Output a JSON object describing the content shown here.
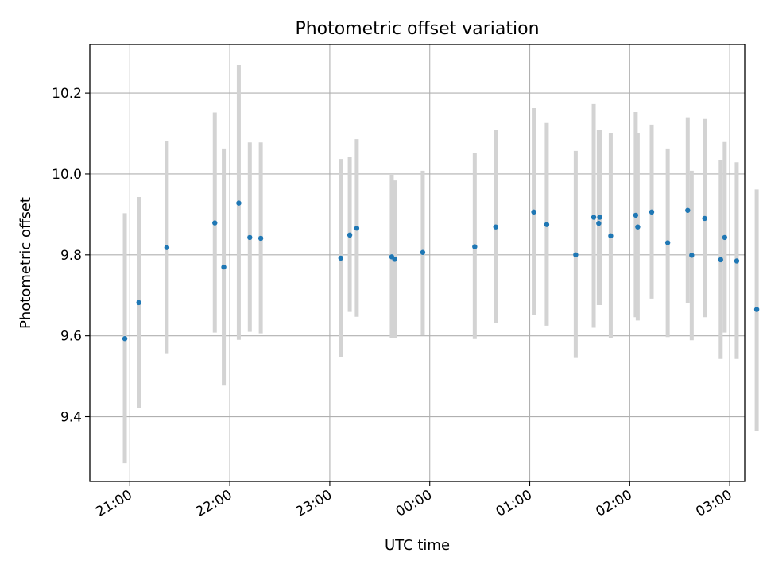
{
  "chart_data": {
    "type": "scatter",
    "title": "Photometric offset variation",
    "xlabel": "UTC time",
    "ylabel": "Photometric offset",
    "x_unit": "UTC hours, with values past midnight written as 24 + hour",
    "xlim": [
      20.6,
      27.15
    ],
    "ylim": [
      9.24,
      10.32
    ],
    "grid": true,
    "marker_color": "#1f77b4",
    "errorbar_color": "#d3d3d3",
    "xticks": [
      {
        "value": 21,
        "label": "21:00"
      },
      {
        "value": 22,
        "label": "22:00"
      },
      {
        "value": 23,
        "label": "23:00"
      },
      {
        "value": 24,
        "label": "00:00"
      },
      {
        "value": 25,
        "label": "01:00"
      },
      {
        "value": 26,
        "label": "02:00"
      },
      {
        "value": 27,
        "label": "03:00"
      }
    ],
    "yticks": [
      {
        "value": 9.4,
        "label": "9.4"
      },
      {
        "value": 9.6,
        "label": "9.6"
      },
      {
        "value": 9.8,
        "label": "9.8"
      },
      {
        "value": 10.0,
        "label": "10.0"
      },
      {
        "value": 10.2,
        "label": "10.2"
      }
    ],
    "points": [
      {
        "x": 20.95,
        "y": 9.593,
        "err_low": 9.285,
        "err_high": 9.903
      },
      {
        "x": 21.09,
        "y": 9.682,
        "err_low": 9.422,
        "err_high": 9.943
      },
      {
        "x": 21.37,
        "y": 9.818,
        "err_low": 9.557,
        "err_high": 10.081
      },
      {
        "x": 21.85,
        "y": 9.879,
        "err_low": 9.608,
        "err_high": 10.152
      },
      {
        "x": 21.94,
        "y": 9.77,
        "err_low": 9.477,
        "err_high": 10.063
      },
      {
        "x": 22.09,
        "y": 9.928,
        "err_low": 9.59,
        "err_high": 10.269
      },
      {
        "x": 22.2,
        "y": 9.843,
        "err_low": 9.61,
        "err_high": 10.078
      },
      {
        "x": 22.31,
        "y": 9.841,
        "err_low": 9.606,
        "err_high": 10.078
      },
      {
        "x": 23.11,
        "y": 9.792,
        "err_low": 9.548,
        "err_high": 10.037
      },
      {
        "x": 23.2,
        "y": 9.849,
        "err_low": 9.659,
        "err_high": 10.043
      },
      {
        "x": 23.27,
        "y": 9.866,
        "err_low": 9.647,
        "err_high": 10.086
      },
      {
        "x": 23.62,
        "y": 9.795,
        "err_low": 9.594,
        "err_high": 9.998
      },
      {
        "x": 23.65,
        "y": 9.789,
        "err_low": 9.594,
        "err_high": 9.984
      },
      {
        "x": 23.93,
        "y": 9.806,
        "err_low": 9.601,
        "err_high": 10.008
      },
      {
        "x": 24.45,
        "y": 9.82,
        "err_low": 9.592,
        "err_high": 10.051
      },
      {
        "x": 24.66,
        "y": 9.869,
        "err_low": 9.631,
        "err_high": 10.108
      },
      {
        "x": 25.04,
        "y": 9.906,
        "err_low": 9.651,
        "err_high": 10.163
      },
      {
        "x": 25.17,
        "y": 9.875,
        "err_low": 9.625,
        "err_high": 10.126
      },
      {
        "x": 25.46,
        "y": 9.8,
        "err_low": 9.545,
        "err_high": 10.057
      },
      {
        "x": 25.64,
        "y": 9.893,
        "err_low": 9.62,
        "err_high": 10.173
      },
      {
        "x": 25.69,
        "y": 9.878,
        "err_low": 9.676,
        "err_high": 10.108
      },
      {
        "x": 25.7,
        "y": 9.893,
        "err_low": 9.676,
        "err_high": 10.108
      },
      {
        "x": 25.81,
        "y": 9.847,
        "err_low": 9.594,
        "err_high": 10.1
      },
      {
        "x": 26.06,
        "y": 9.898,
        "err_low": 9.646,
        "err_high": 10.153
      },
      {
        "x": 26.08,
        "y": 9.869,
        "err_low": 9.638,
        "err_high": 10.101
      },
      {
        "x": 26.22,
        "y": 9.906,
        "err_low": 9.692,
        "err_high": 10.122
      },
      {
        "x": 26.38,
        "y": 9.83,
        "err_low": 9.597,
        "err_high": 10.063
      },
      {
        "x": 26.58,
        "y": 9.91,
        "err_low": 9.68,
        "err_high": 10.14
      },
      {
        "x": 26.62,
        "y": 9.799,
        "err_low": 9.589,
        "err_high": 10.008
      },
      {
        "x": 26.75,
        "y": 9.89,
        "err_low": 9.646,
        "err_high": 10.136
      },
      {
        "x": 26.91,
        "y": 9.788,
        "err_low": 9.543,
        "err_high": 10.034
      },
      {
        "x": 26.95,
        "y": 9.843,
        "err_low": 9.608,
        "err_high": 10.079
      },
      {
        "x": 27.07,
        "y": 9.785,
        "err_low": 9.543,
        "err_high": 10.029
      },
      {
        "x": 27.27,
        "y": 9.665,
        "err_low": 9.365,
        "err_high": 9.962
      }
    ]
  }
}
